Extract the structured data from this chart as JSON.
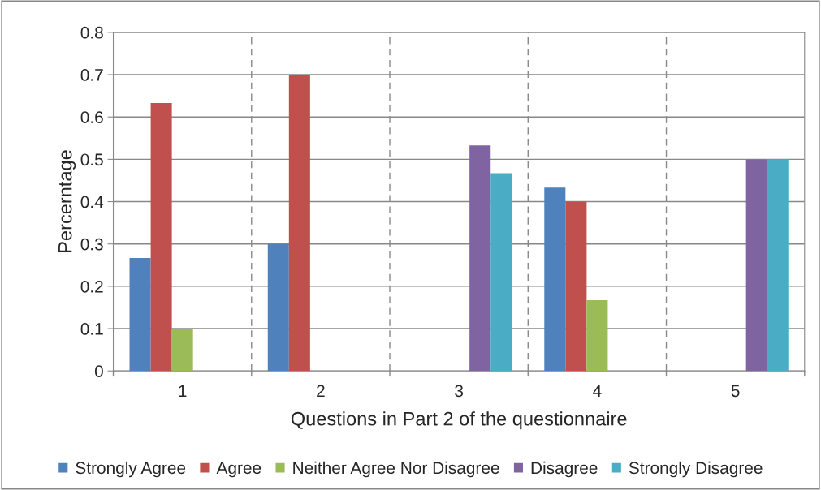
{
  "chart_data": {
    "type": "bar",
    "xlabel": "Questions in Part 2 of the questionnaire",
    "ylabel": "Percerntage",
    "categories": [
      "1",
      "2",
      "3",
      "4",
      "5"
    ],
    "series": [
      {
        "name": "Strongly Agree",
        "color": "#4f81bd",
        "values": [
          0.267,
          0.3,
          null,
          0.433,
          null
        ]
      },
      {
        "name": "Agree",
        "color": "#c0504d",
        "values": [
          0.633,
          0.7,
          null,
          0.4,
          null
        ]
      },
      {
        "name": "Neither Agree Nor Disagree",
        "color": "#9bbb59",
        "values": [
          0.1,
          null,
          null,
          0.167,
          null
        ]
      },
      {
        "name": "Disagree",
        "color": "#8064a2",
        "values": [
          null,
          null,
          0.533,
          null,
          0.5
        ]
      },
      {
        "name": "Strongly Disagree",
        "color": "#4bacc6",
        "values": [
          null,
          null,
          0.467,
          null,
          0.5
        ]
      }
    ],
    "ylim": [
      0,
      0.8
    ],
    "yticks": [
      0,
      0.1,
      0.2,
      0.3,
      0.4,
      0.5,
      0.6,
      0.7,
      0.8
    ],
    "grid": true,
    "legend": "bottom"
  }
}
